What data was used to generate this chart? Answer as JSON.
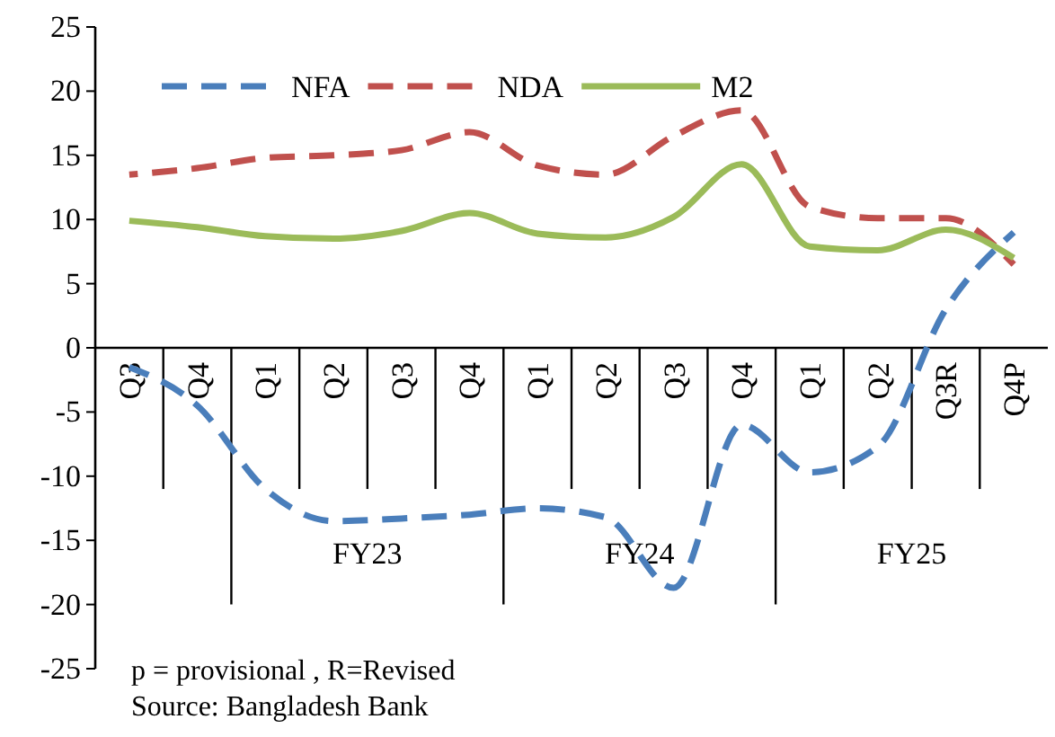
{
  "chart_data": {
    "type": "line",
    "categories": [
      "Q3",
      "Q4",
      "Q1",
      "Q2",
      "Q3",
      "Q4",
      "Q1",
      "Q2",
      "Q3",
      "Q4",
      "Q1",
      "Q2",
      "Q3R",
      "Q4P"
    ],
    "series": [
      {
        "name": "NFA",
        "color": "#4a7ebb",
        "line_style": "dashed",
        "values": [
          -1.5,
          -4.5,
          -11,
          -13.5,
          -13.3,
          -13,
          -12.5,
          -13.2,
          -18.7,
          -6,
          -9.7,
          -7.7,
          3,
          9
        ]
      },
      {
        "name": "NDA",
        "color": "#c0504d",
        "line_style": "dashed",
        "values": [
          13.5,
          14,
          14.8,
          15,
          15.4,
          16.8,
          14.2,
          13.5,
          16.5,
          18.5,
          11,
          10.1,
          10.1,
          6.5
        ]
      },
      {
        "name": "M2",
        "color": "#9bbb59",
        "line_style": "solid",
        "values": [
          9.9,
          9.4,
          8.7,
          8.5,
          9.1,
          10.5,
          8.9,
          8.6,
          10.2,
          14.3,
          7.9,
          7.6,
          9.2,
          7
        ]
      }
    ],
    "ylim": [
      -25,
      25
    ],
    "yticks": [
      -25,
      -20,
      -15,
      -10,
      -5,
      0,
      5,
      10,
      15,
      20,
      25
    ],
    "grid": false,
    "legend": "top",
    "marker": "none",
    "annotations": [
      "FY23",
      "FY24",
      "FY25",
      "p = provisional , R=Revised",
      "Source: Bangladesh Bank"
    ]
  }
}
